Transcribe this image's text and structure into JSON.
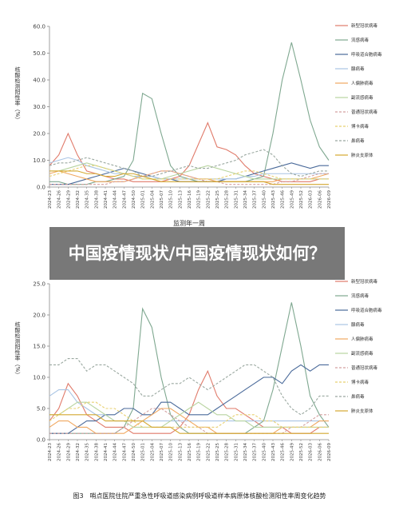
{
  "chart_data": [
    {
      "type": "line",
      "ylabel": "核酸检测阳性率（%）",
      "xlabel": "监测年一周",
      "categories": [
        "2024-23",
        "2024-26",
        "2024-29",
        "2024-32",
        "2024-35",
        "2024-38",
        "2024-41",
        "2024-44",
        "2024-47",
        "2024-50",
        "2025-01",
        "2025-04",
        "2025-07",
        "2025-10",
        "2025-13",
        "2025-16",
        "2025-19",
        "2025-22",
        "2025-25",
        "2025-28",
        "2025-31",
        "2025-34",
        "2025-37",
        "2025-40",
        "2025-43",
        "2025-46",
        "2025-49",
        "2025-52",
        "2026-03",
        "2026-06",
        "2026-09"
      ],
      "ylim": [
        0,
        60
      ],
      "yticks": [
        {
          "value": 0,
          "label": "0.0"
        },
        {
          "value": 10,
          "label": "10.0"
        },
        {
          "value": 20,
          "label": "20.0"
        },
        {
          "value": 30,
          "label": "30.0"
        },
        {
          "value": 40,
          "label": "40.0"
        },
        {
          "value": 50,
          "label": "50.0"
        },
        {
          "value": 60,
          "label": "60.0"
        }
      ],
      "series": [
        {
          "name": "新型冠状病毒",
          "color": "#e07a6a",
          "values": [
            8,
            12,
            20,
            12,
            6,
            5,
            4,
            3,
            3,
            2,
            2,
            2,
            2,
            3,
            4,
            8,
            16,
            24,
            15,
            14,
            12,
            8,
            5,
            4,
            3,
            2,
            2,
            2,
            2,
            3,
            3
          ]
        },
        {
          "name": "流感病毒",
          "color": "#7fa890",
          "values": [
            2,
            2,
            1,
            1,
            1,
            2,
            2,
            3,
            4,
            10,
            35,
            33,
            20,
            8,
            4,
            3,
            2,
            2,
            2,
            2,
            2,
            2,
            3,
            4,
            20,
            40,
            54,
            40,
            25,
            15,
            10
          ]
        },
        {
          "name": "呼吸道合胞病毒",
          "color": "#4a6a9a",
          "values": [
            1,
            1,
            1,
            2,
            3,
            4,
            5,
            6,
            7,
            6,
            5,
            4,
            3,
            3,
            2,
            2,
            2,
            2,
            2,
            3,
            3,
            4,
            5,
            6,
            7,
            8,
            9,
            8,
            7,
            8,
            8
          ]
        },
        {
          "name": "腺病毒",
          "color": "#a9c4e4",
          "values": [
            9,
            10,
            11,
            10,
            8,
            7,
            6,
            5,
            5,
            4,
            4,
            4,
            3,
            3,
            3,
            3,
            3,
            3,
            3,
            3,
            3,
            4,
            4,
            5,
            5,
            5,
            5,
            5,
            5,
            5,
            5
          ]
        },
        {
          "name": "人偏肺病毒",
          "color": "#f0a860",
          "values": [
            5,
            6,
            5,
            4,
            3,
            2,
            2,
            2,
            2,
            3,
            4,
            5,
            6,
            6,
            5,
            4,
            3,
            3,
            2,
            2,
            2,
            2,
            2,
            2,
            2,
            3,
            3,
            3,
            3,
            4,
            5
          ]
        },
        {
          "name": "副流感病毒",
          "color": "#b8d4a0",
          "values": [
            6,
            6,
            7,
            8,
            9,
            8,
            7,
            6,
            5,
            4,
            3,
            3,
            3,
            4,
            5,
            6,
            7,
            8,
            7,
            6,
            5,
            4,
            3,
            3,
            3,
            3,
            3,
            3,
            3,
            3,
            3
          ]
        },
        {
          "name": "普通冠状病毒",
          "color": "#d4a0a0",
          "dashed": true,
          "values": [
            1,
            1,
            1,
            1,
            1,
            1,
            1,
            2,
            2,
            3,
            4,
            5,
            6,
            6,
            5,
            4,
            3,
            2,
            2,
            1,
            1,
            1,
            1,
            1,
            1,
            2,
            2,
            3,
            4,
            5,
            5
          ]
        },
        {
          "name": "博卡病毒",
          "color": "#e8d070",
          "dashed": true,
          "values": [
            4,
            5,
            6,
            7,
            8,
            8,
            7,
            6,
            5,
            4,
            3,
            3,
            3,
            3,
            3,
            3,
            3,
            3,
            3,
            4,
            5,
            6,
            6,
            5,
            4,
            3,
            3,
            3,
            3,
            3,
            3
          ]
        },
        {
          "name": "鼻病毒",
          "color": "#9aa8a0",
          "dashed": true,
          "values": [
            8,
            9,
            9,
            10,
            11,
            10,
            9,
            8,
            7,
            6,
            4,
            4,
            5,
            6,
            7,
            8,
            7,
            7,
            8,
            9,
            10,
            12,
            13,
            14,
            12,
            8,
            5,
            4,
            5,
            6,
            6
          ]
        },
        {
          "name": "肺炎支原体",
          "color": "#d4a830",
          "values": [
            6,
            6,
            6,
            6,
            5,
            5,
            4,
            4,
            5,
            5,
            4,
            3,
            2,
            2,
            2,
            2,
            2,
            2,
            2,
            2,
            2,
            2,
            2,
            2,
            1,
            1,
            1,
            1,
            1,
            1,
            1
          ]
        }
      ]
    },
    {
      "type": "line",
      "ylabel": "核酸检测阳性率（%）",
      "caption": "图3　哨点医院住院严重急性呼吸道感染病例呼吸道样本病原体核酸检测阳性率周变化趋势",
      "categories": [
        "2024-23",
        "2024-26",
        "2024-29",
        "2024-32",
        "2024-35",
        "2024-38",
        "2024-41",
        "2024-44",
        "2024-47",
        "2024-50",
        "2025-01",
        "2025-04",
        "2025-07",
        "2025-10",
        "2025-13",
        "2025-16",
        "2025-19",
        "2025-22",
        "2025-25",
        "2025-28",
        "2025-31",
        "2025-34",
        "2025-37",
        "2025-40",
        "2025-43",
        "2025-46",
        "2025-49",
        "2025-52",
        "2026-03",
        "2026-06",
        "2026-09"
      ],
      "ylim": [
        0,
        25
      ],
      "yticks": [
        {
          "value": 0,
          "label": "0.0"
        },
        {
          "value": 5,
          "label": "5.0"
        },
        {
          "value": 10,
          "label": "10.0"
        },
        {
          "value": 15,
          "label": "15.0"
        },
        {
          "value": 20,
          "label": "20.0"
        },
        {
          "value": 25,
          "label": "25.0"
        }
      ],
      "series": [
        {
          "name": "新型冠状病毒",
          "color": "#e07a6a",
          "values": [
            3,
            5,
            9,
            7,
            4,
            3,
            2,
            2,
            2,
            1,
            1,
            1,
            1,
            1,
            2,
            4,
            8,
            11,
            7,
            5,
            5,
            4,
            3,
            2,
            2,
            2,
            1,
            1,
            1,
            2,
            2
          ]
        },
        {
          "name": "流感病毒",
          "color": "#7fa890",
          "values": [
            1,
            1,
            1,
            1,
            1,
            1,
            1,
            1,
            2,
            5,
            21,
            18,
            10,
            4,
            2,
            1,
            1,
            1,
            1,
            1,
            1,
            1,
            2,
            3,
            8,
            15,
            22,
            15,
            7,
            4,
            2
          ]
        },
        {
          "name": "呼吸道合胞病毒",
          "color": "#4a6a9a",
          "values": [
            1,
            1,
            1,
            2,
            3,
            3,
            4,
            4,
            5,
            5,
            4,
            4,
            6,
            6,
            5,
            4,
            4,
            4,
            5,
            6,
            7,
            8,
            9,
            10,
            10,
            9,
            11,
            12,
            11,
            12,
            12
          ]
        },
        {
          "name": "腺病毒",
          "color": "#a9c4e4",
          "values": [
            7,
            8,
            8,
            6,
            5,
            4,
            4,
            3,
            3,
            3,
            3,
            3,
            3,
            3,
            3,
            3,
            3,
            3,
            3,
            3,
            3,
            3,
            3,
            3,
            3,
            3,
            3,
            3,
            3,
            3,
            3
          ]
        },
        {
          "name": "人偏肺病毒",
          "color": "#f0a860",
          "values": [
            2,
            3,
            3,
            2,
            2,
            1,
            1,
            1,
            1,
            2,
            3,
            4,
            5,
            5,
            4,
            3,
            2,
            2,
            1,
            1,
            1,
            1,
            1,
            1,
            1,
            2,
            2,
            2,
            2,
            3,
            3
          ]
        },
        {
          "name": "副流感病毒",
          "color": "#b8d4a0",
          "values": [
            4,
            4,
            5,
            6,
            6,
            5,
            4,
            3,
            3,
            2,
            2,
            2,
            2,
            3,
            4,
            5,
            6,
            5,
            4,
            4,
            3,
            3,
            2,
            2,
            2,
            2,
            2,
            2,
            2,
            2,
            2
          ]
        },
        {
          "name": "普通冠状病毒",
          "color": "#d4a0a0",
          "dashed": true,
          "values": [
            1,
            1,
            1,
            1,
            1,
            1,
            1,
            1,
            2,
            3,
            4,
            5,
            5,
            4,
            3,
            2,
            2,
            1,
            1,
            1,
            1,
            1,
            1,
            1,
            1,
            1,
            2,
            2,
            3,
            4,
            4
          ]
        },
        {
          "name": "博卡病毒",
          "color": "#e8d070",
          "dashed": true,
          "values": [
            3,
            4,
            5,
            5,
            6,
            6,
            5,
            5,
            4,
            3,
            2,
            2,
            2,
            2,
            2,
            2,
            2,
            2,
            2,
            3,
            4,
            4,
            4,
            3,
            3,
            2,
            2,
            2,
            2,
            2,
            2
          ]
        },
        {
          "name": "鼻病毒",
          "color": "#9aa8a0",
          "dashed": true,
          "values": [
            12,
            12,
            13,
            13,
            11,
            12,
            12,
            11,
            10,
            9,
            7,
            7,
            8,
            9,
            9,
            10,
            9,
            8,
            9,
            10,
            11,
            12,
            12,
            11,
            10,
            7,
            5,
            4,
            5,
            7,
            7
          ]
        },
        {
          "name": "肺炎支原体",
          "color": "#d4a830",
          "values": [
            4,
            4,
            4,
            4,
            4,
            4,
            3,
            3,
            3,
            3,
            3,
            2,
            2,
            2,
            1,
            1,
            1,
            1,
            1,
            1,
            1,
            1,
            1,
            1,
            1,
            1,
            1,
            1,
            1,
            1,
            1
          ]
        }
      ]
    }
  ],
  "overlay_title": "中国疫情现状/中国疫情现状如何？"
}
